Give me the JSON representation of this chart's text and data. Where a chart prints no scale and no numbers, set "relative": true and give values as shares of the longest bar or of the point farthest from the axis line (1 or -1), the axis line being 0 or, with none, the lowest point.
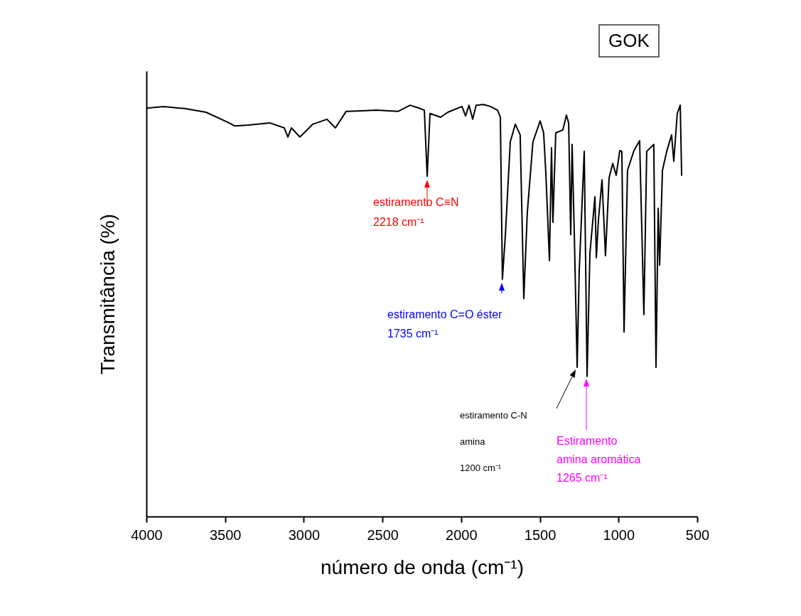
{
  "chart_data": {
    "type": "line",
    "title": "GOK",
    "xlabel": "número de onda (cm⁻¹)",
    "ylabel": "Transmitância (%)",
    "relative": true,
    "xlim": [
      4000,
      500
    ],
    "xticks": [
      4000,
      3500,
      3000,
      2500,
      2000,
      1500,
      1000,
      500
    ],
    "grid": false,
    "series": [
      {
        "color": "#000000",
        "x": [
          4000,
          3892,
          3756,
          3621,
          3485,
          3440,
          3350,
          3214,
          3124,
          3101,
          3079,
          3025,
          2966,
          2943,
          2853,
          2799,
          2731,
          2537,
          2401,
          2325,
          2266,
          2234,
          2216,
          2198,
          2130,
          2085,
          1995,
          1972,
          1950,
          1927,
          1905,
          1859,
          1814,
          1769,
          1751,
          1738,
          1719,
          1688,
          1656,
          1625,
          1602,
          1580,
          1544,
          1498,
          1476,
          1462,
          1439,
          1426,
          1417,
          1399,
          1354,
          1331,
          1317,
          1304,
          1295,
          1281,
          1263,
          1250,
          1218,
          1200,
          1182,
          1150,
          1141,
          1128,
          1105,
          1083,
          1060,
          1037,
          1015,
          992,
          979,
          965,
          943,
          902,
          866,
          839,
          821,
          776,
          762,
          748,
          739,
          721,
          694,
          663,
          649,
          627,
          608,
          599
        ],
        "values": [
          0.991,
          0.995,
          0.99,
          0.981,
          0.957,
          0.948,
          0.95,
          0.955,
          0.943,
          0.921,
          0.943,
          0.921,
          0.943,
          0.952,
          0.964,
          0.943,
          0.983,
          0.986,
          0.983,
          0.998,
          0.991,
          0.986,
          0.826,
          0.978,
          0.969,
          0.981,
          0.995,
          0.972,
          0.998,
          0.964,
          0.998,
          1,
          0.995,
          0.986,
          0.969,
          0.576,
          0.684,
          0.909,
          0.952,
          0.926,
          0.529,
          0.736,
          0.909,
          0.96,
          0.931,
          0.834,
          0.621,
          0.895,
          0.714,
          0.931,
          0.938,
          0.974,
          0.955,
          0.684,
          0.903,
          0.684,
          0.362,
          0.593,
          0.886,
          0.34,
          0.638,
          0.776,
          0.628,
          0.719,
          0.817,
          0.633,
          0.822,
          0.857,
          0.828,
          0.888,
          0.886,
          0.448,
          0.84,
          0.888,
          0.912,
          0.49,
          0.886,
          0.903,
          0.362,
          0.748,
          0.61,
          0.84,
          0.886,
          0.926,
          0.862,
          0.978,
          0.998,
          0.828
        ]
      }
    ],
    "annotations": [
      "estiramento C≡N\n2218 cm⁻¹",
      "estiramento C=O éster\n1735 cm⁻¹",
      "estiramento C-N\namina\n1200 cm⁻¹",
      "Estiramento\namina aromática\n1265 cm⁻¹"
    ]
  }
}
